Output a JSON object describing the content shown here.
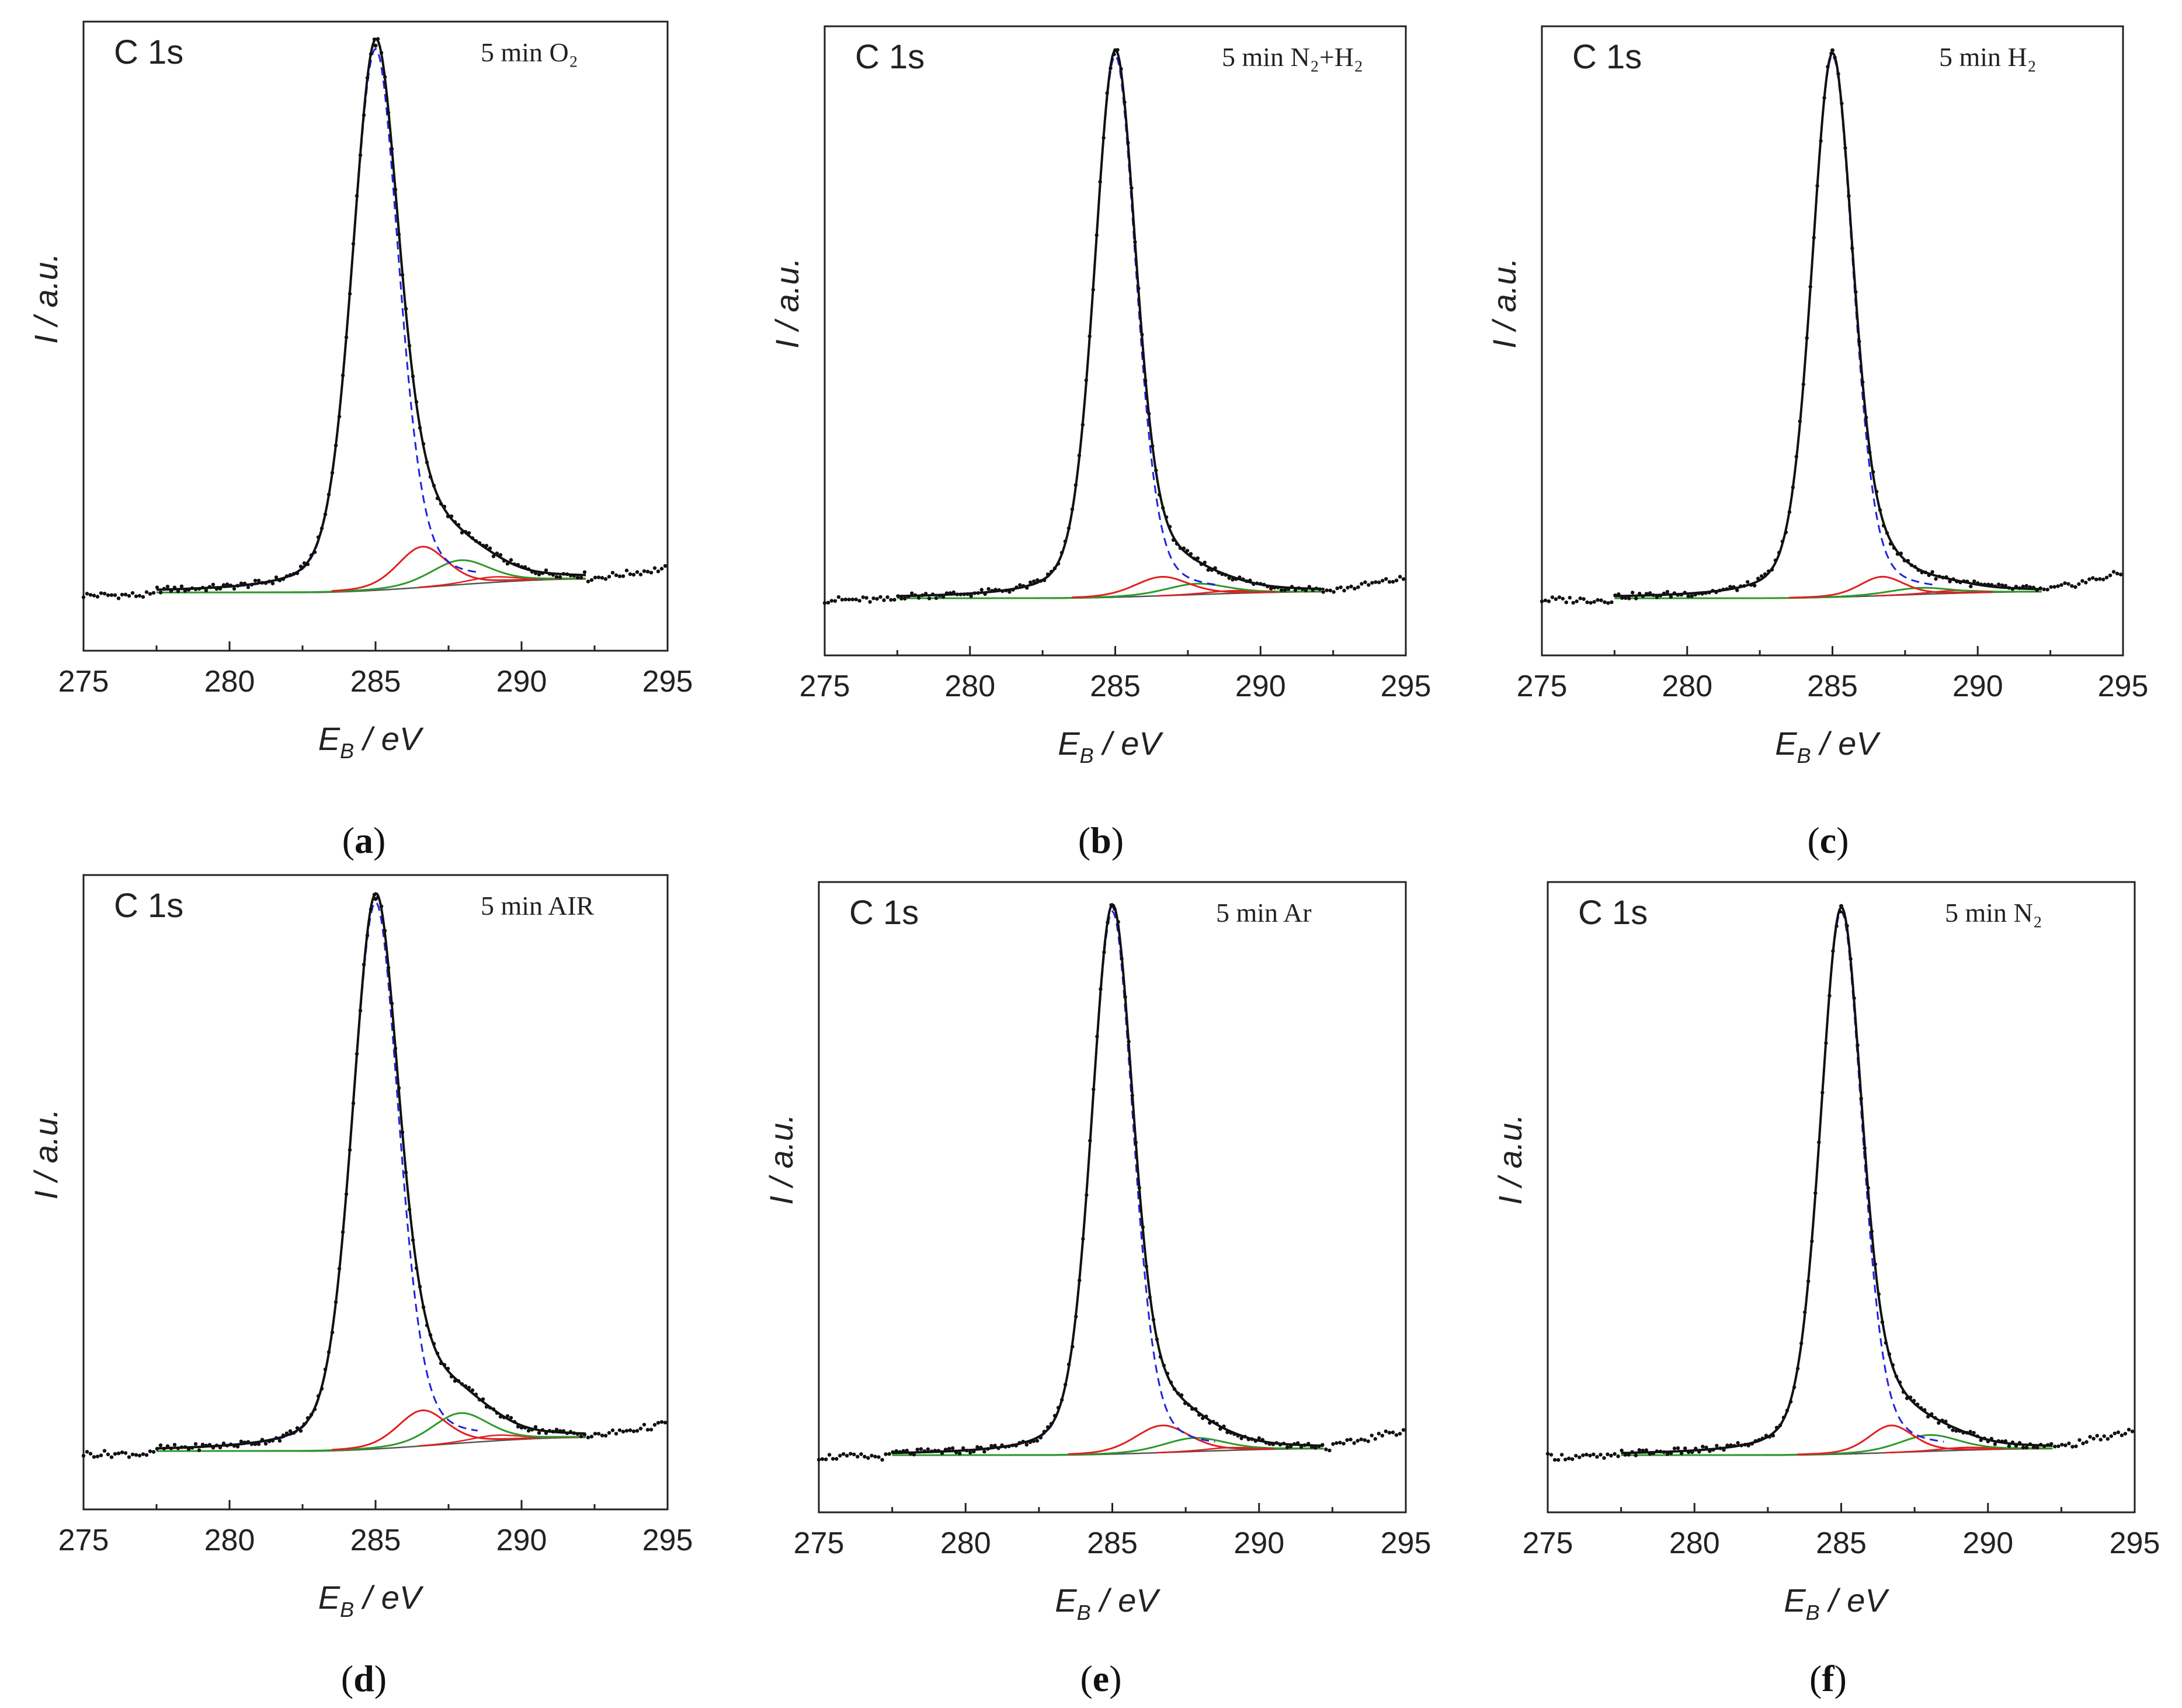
{
  "figure": {
    "caption_open": "(",
    "caption_close": ")"
  },
  "colors": {
    "data_points": "#111111",
    "envelope": "#111111",
    "main_peak_dashed": "#2222dd",
    "peak_red": "#e02020",
    "peak_green": "#2a9a2a",
    "background": "#555555"
  },
  "chart_data": [
    {
      "type": "line",
      "panel": "a",
      "element_label": "C 1s",
      "condition": "5 min O₂",
      "xlabel_main": "E",
      "xlabel_sub": "B",
      "xlabel_unit": " / eV",
      "ylabel": "I / a.u.",
      "xlim": [
        275,
        295
      ],
      "ylim": [
        0,
        100
      ],
      "xticks": [
        "275",
        "280",
        "285",
        "290",
        "295"
      ],
      "peaks": {
        "main": {
          "center": 285.0,
          "height": 100,
          "fwhm": 1.9
        },
        "red": {
          "center": 286.6,
          "height": 7.5,
          "fwhm": 2.0
        },
        "green": {
          "center": 287.9,
          "height": 4.5,
          "fwhm": 2.4
        },
        "red2": {
          "center": 289.0,
          "height": 1.0,
          "fwhm": 2.0
        }
      },
      "background": {
        "start": 282.5,
        "end": 292.2,
        "low": 0.5,
        "high": 3.0
      },
      "baseline_left": 0.0,
      "baseline_right": 5.0
    },
    {
      "type": "line",
      "panel": "b",
      "element_label": "C 1s",
      "condition": "5 min N₂+H₂",
      "xlabel_main": "E",
      "xlabel_sub": "B",
      "xlabel_unit": " / eV",
      "ylabel": "I / a.u.",
      "xlim": [
        275,
        295
      ],
      "ylim": [
        0,
        100
      ],
      "xticks": [
        "275",
        "280",
        "285",
        "290",
        "295"
      ],
      "peaks": {
        "main": {
          "center": 285.0,
          "height": 100,
          "fwhm": 1.7
        },
        "red": {
          "center": 286.6,
          "height": 3.5,
          "fwhm": 2.2
        },
        "green": {
          "center": 287.8,
          "height": 2.0,
          "fwhm": 2.5
        },
        "red2": {
          "center": 289.0,
          "height": 0.5,
          "fwhm": 2.0
        }
      },
      "background": {
        "start": 282.5,
        "end": 292.2,
        "low": 0.3,
        "high": 1.5
      },
      "baseline_left": 0.0,
      "baseline_right": 4.0
    },
    {
      "type": "line",
      "panel": "c",
      "element_label": "C 1s",
      "condition": "5 min H₂",
      "xlabel_main": "E",
      "xlabel_sub": "B",
      "xlabel_unit": " / eV",
      "ylabel": "I / a.u.",
      "xlim": [
        275,
        295
      ],
      "ylim": [
        0,
        100
      ],
      "xticks": [
        "275",
        "280",
        "285",
        "290",
        "295"
      ],
      "peaks": {
        "main": {
          "center": 285.0,
          "height": 100,
          "fwhm": 1.7
        },
        "red": {
          "center": 286.7,
          "height": 3.5,
          "fwhm": 1.8
        },
        "green": {
          "center": 288.0,
          "height": 1.2,
          "fwhm": 2.5
        },
        "red2": {
          "center": 289.2,
          "height": 0.5,
          "fwhm": 2.0
        }
      },
      "background": {
        "start": 282.5,
        "end": 292.2,
        "low": 0.3,
        "high": 1.5
      },
      "baseline_left": 0.0,
      "baseline_right": 5.0
    },
    {
      "type": "line",
      "panel": "d",
      "element_label": "C 1s",
      "condition": "5 min AIR",
      "xlabel_main": "E",
      "xlabel_sub": "B",
      "xlabel_unit": " / eV",
      "ylabel": "I / a.u.",
      "xlim": [
        275,
        295
      ],
      "ylim": [
        0,
        100
      ],
      "xticks": [
        "275",
        "280",
        "285",
        "290",
        "295"
      ],
      "peaks": {
        "main": {
          "center": 285.0,
          "height": 100,
          "fwhm": 1.9
        },
        "red": {
          "center": 286.6,
          "height": 6.5,
          "fwhm": 2.0
        },
        "green": {
          "center": 287.9,
          "height": 5.5,
          "fwhm": 2.3
        },
        "red2": {
          "center": 289.1,
          "height": 1.0,
          "fwhm": 2.0
        }
      },
      "background": {
        "start": 282.5,
        "end": 292.2,
        "low": 0.5,
        "high": 3.0
      },
      "baseline_left": 0.0,
      "baseline_right": 5.5
    },
    {
      "type": "line",
      "panel": "e",
      "element_label": "C 1s",
      "condition": "5 min Ar",
      "xlabel_main": "E",
      "xlabel_sub": "B",
      "xlabel_unit": " / eV",
      "ylabel": "I / a.u.",
      "xlim": [
        275,
        295
      ],
      "ylim": [
        0,
        100
      ],
      "xticks": [
        "275",
        "280",
        "285",
        "290",
        "295"
      ],
      "peaks": {
        "main": {
          "center": 285.0,
          "height": 100,
          "fwhm": 1.7
        },
        "red": {
          "center": 286.7,
          "height": 5.0,
          "fwhm": 2.2
        },
        "green": {
          "center": 287.8,
          "height": 2.5,
          "fwhm": 2.5
        },
        "red2": {
          "center": 289.0,
          "height": 0.5,
          "fwhm": 2.0
        }
      },
      "background": {
        "start": 282.5,
        "end": 292.2,
        "low": 0.3,
        "high": 1.5
      },
      "baseline_left": 0.0,
      "baseline_right": 5.0
    },
    {
      "type": "line",
      "panel": "f",
      "element_label": "C 1s",
      "condition": "5 min N₂",
      "xlabel_main": "E",
      "xlabel_sub": "B",
      "xlabel_unit": " / eV",
      "ylabel": "I / a.u.",
      "xlim": [
        275,
        295
      ],
      "ylim": [
        0,
        100
      ],
      "xticks": [
        "275",
        "280",
        "285",
        "290",
        "295"
      ],
      "peaks": {
        "main": {
          "center": 285.0,
          "height": 100,
          "fwhm": 1.7
        },
        "red": {
          "center": 286.7,
          "height": 5.0,
          "fwhm": 1.8
        },
        "green": {
          "center": 288.0,
          "height": 3.0,
          "fwhm": 2.4
        },
        "red2": {
          "center": 289.2,
          "height": 0.5,
          "fwhm": 2.0
        }
      },
      "background": {
        "start": 282.5,
        "end": 292.2,
        "low": 0.3,
        "high": 1.5
      },
      "baseline_left": 0.0,
      "baseline_right": 5.0
    }
  ]
}
